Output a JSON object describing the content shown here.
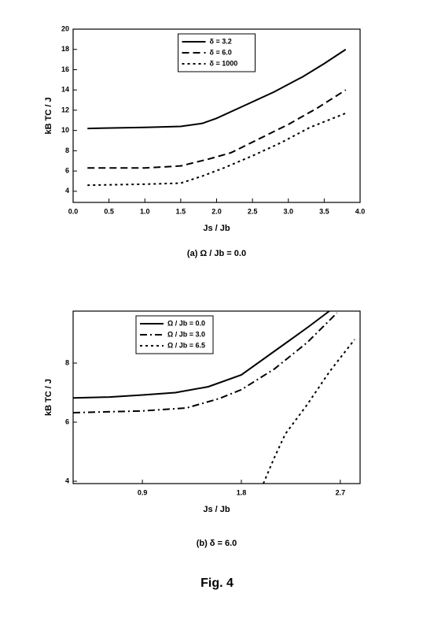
{
  "figure_label": "Fig. 4",
  "chart_data": [
    {
      "type": "line",
      "caption": "(a)   Ω / Jb = 0.0",
      "x_label": "Js / Jb",
      "y_label": "kB TC / J",
      "xlim": [
        0,
        4
      ],
      "ylim": [
        2.9,
        20
      ],
      "xticks": [
        {
          "value": 0,
          "label": "0.0"
        },
        0.5,
        {
          "value": 1,
          "label": "1.0"
        },
        1.5,
        {
          "value": 2,
          "label": "2.0"
        },
        2.5,
        {
          "value": 3,
          "label": "3.0"
        },
        3.5,
        {
          "value": 4,
          "label": "4.0"
        }
      ],
      "yticks": [
        4,
        6,
        8,
        10,
        12,
        14,
        16,
        18,
        20
      ],
      "legend": "upper center",
      "series": [
        {
          "name": "δ = 3.2",
          "color": "#000000",
          "dash": "solid",
          "x": [
            0.2,
            1.0,
            1.5,
            1.8,
            2.0,
            2.4,
            2.8,
            3.2,
            3.5,
            3.8
          ],
          "values": [
            10.2,
            10.3,
            10.4,
            10.7,
            11.2,
            12.5,
            13.8,
            15.3,
            16.6,
            18.0
          ]
        },
        {
          "name": "δ = 6.0",
          "color": "#000000",
          "dash": "dash",
          "x": [
            0.2,
            1.0,
            1.5,
            1.9,
            2.2,
            2.6,
            3.0,
            3.4,
            3.8
          ],
          "values": [
            6.3,
            6.3,
            6.5,
            7.2,
            7.8,
            9.2,
            10.6,
            12.2,
            14.0
          ]
        },
        {
          "name": "δ = 1000",
          "color": "#000000",
          "dash": "dot",
          "x": [
            0.2,
            1.0,
            1.5,
            1.8,
            2.1,
            2.5,
            2.9,
            3.3,
            3.8
          ],
          "values": [
            4.6,
            4.7,
            4.8,
            5.5,
            6.3,
            7.5,
            8.8,
            10.3,
            11.7
          ]
        }
      ]
    },
    {
      "type": "line",
      "caption": "(b)   δ = 6.0",
      "x_label": "Js / Jb",
      "y_label": "kB TC / J",
      "xlim": [
        0.27,
        2.88
      ],
      "ylim": [
        3.92,
        9.76
      ],
      "xticks": [
        0.9,
        1.8,
        2.7
      ],
      "yticks": [
        4,
        6,
        8
      ],
      "legend": "upper left",
      "series": [
        {
          "name": "Ω / Jb = 0.0",
          "color": "#000000",
          "dash": "solid",
          "x": [
            0.27,
            0.6,
            0.9,
            1.2,
            1.5,
            1.8,
            2.1,
            2.4,
            2.6
          ],
          "values": [
            6.82,
            6.85,
            6.92,
            7.0,
            7.2,
            7.6,
            8.4,
            9.2,
            9.76
          ]
        },
        {
          "name": "Ω / Jb = 3.0",
          "color": "#000000",
          "dash": "dashdot",
          "x": [
            0.27,
            0.9,
            1.3,
            1.6,
            1.8,
            2.1,
            2.4,
            2.67
          ],
          "values": [
            6.32,
            6.38,
            6.48,
            6.8,
            7.1,
            7.8,
            8.7,
            9.7
          ]
        },
        {
          "name": "Ω / Jb = 6.5",
          "color": "#000000",
          "dash": "dot",
          "x": [
            2.0,
            2.1,
            2.2,
            2.4,
            2.6,
            2.83
          ],
          "values": [
            3.92,
            4.8,
            5.6,
            6.6,
            7.7,
            8.8
          ]
        }
      ]
    }
  ]
}
